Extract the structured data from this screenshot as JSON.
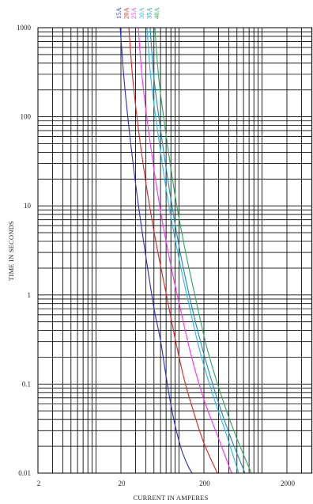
{
  "chart_data": {
    "type": "line",
    "xlabel": "CURRENT IN AMPERES",
    "ylabel": "TIME IN SECONDS",
    "xscale": "log",
    "yscale": "log",
    "xlim": [
      2,
      4000
    ],
    "ylim": [
      0.01,
      1000
    ],
    "grid": true,
    "legend": "top",
    "xticks": [
      {
        "value": 2,
        "label": "2"
      },
      {
        "value": 20,
        "label": "20"
      },
      {
        "value": 200,
        "label": "200"
      },
      {
        "value": 2000,
        "label": "2000"
      }
    ],
    "yticks": [
      {
        "value": 1000,
        "label": "1000"
      },
      {
        "value": 100,
        "label": "100"
      },
      {
        "value": 10,
        "label": "10"
      },
      {
        "value": 1,
        "label": "1"
      },
      {
        "value": 0.1,
        "label": "0.1"
      },
      {
        "value": 0.01,
        "label": "0.01"
      }
    ],
    "series": [
      {
        "name": "15A",
        "color": "#3030c8",
        "points": [
          [
            19.6,
            1000
          ],
          [
            21.8,
            265
          ],
          [
            24.9,
            77.6
          ],
          [
            29,
            22.8
          ],
          [
            34.6,
            6.67
          ],
          [
            42.1,
            1.96
          ],
          [
            50.2,
            0.7
          ],
          [
            59.9,
            0.31
          ],
          [
            69.8,
            0.124
          ],
          [
            79.6,
            0.06
          ],
          [
            90.8,
            0.033
          ],
          [
            108,
            0.018
          ],
          [
            129,
            0.012
          ],
          [
            144,
            0.01
          ]
        ]
      },
      {
        "name": "20A",
        "color": "#e02828",
        "points": [
          [
            24.9,
            1000
          ],
          [
            27.8,
            265
          ],
          [
            33.1,
            63.3
          ],
          [
            41.2,
            15.1
          ],
          [
            53.7,
            3.61
          ],
          [
            69.8,
            1.06
          ],
          [
            90.8,
            0.31
          ],
          [
            116,
            0.112
          ],
          [
            150,
            0.049
          ],
          [
            200,
            0.0217
          ],
          [
            290,
            0.01
          ]
        ]
      },
      {
        "name": "25A",
        "color": "#ff30ff",
        "points": [
          [
            32.4,
            1000
          ],
          [
            36.2,
            265
          ],
          [
            45,
            51.5
          ],
          [
            58.6,
            10
          ],
          [
            77.9,
            2.4
          ],
          [
            104,
            0.7
          ],
          [
            141,
            0.206
          ],
          [
            200,
            0.067
          ],
          [
            290,
            0.0267
          ],
          [
            431,
            0.01
          ]
        ]
      },
      {
        "name": "30A",
        "color": "#30b8e8",
        "points": [
          [
            41.2,
            1000
          ],
          [
            46,
            265
          ],
          [
            56.1,
            63.3
          ],
          [
            72.9,
            12.3
          ],
          [
            97,
            2.94
          ],
          [
            129,
            0.863
          ],
          [
            175,
            0.253
          ],
          [
            249,
            0.0822
          ],
          [
            362,
            0.0296
          ],
          [
            525,
            0.01
          ]
        ]
      },
      {
        "name": "35A",
        "color": "#2090b0",
        "points": [
          [
            45,
            1000
          ],
          [
            50.2,
            265
          ],
          [
            61.2,
            63.3
          ],
          [
            79.6,
            12.3
          ],
          [
            104,
            2.94
          ],
          [
            141,
            0.78
          ],
          [
            191,
            0.253
          ],
          [
            272,
            0.0822
          ],
          [
            403,
            0.0278
          ],
          [
            626,
            0.01
          ]
        ]
      },
      {
        "name": "40A",
        "color": "#30a860",
        "points": [
          [
            51.3,
            1000
          ],
          [
            57.3,
            265
          ],
          [
            69.8,
            63.3
          ],
          [
            90.8,
            12.3
          ],
          [
            121,
            2.94
          ],
          [
            161,
            0.863
          ],
          [
            218,
            0.253
          ],
          [
            324,
            0.0742
          ],
          [
            481,
            0.0267
          ],
          [
            746,
            0.01
          ]
        ]
      }
    ]
  }
}
